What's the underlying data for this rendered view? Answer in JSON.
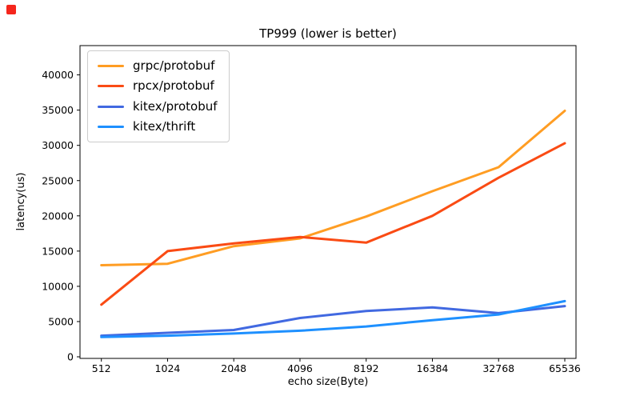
{
  "overlay": {
    "record_marker_color": "#F5261C"
  },
  "chart_data": {
    "type": "line",
    "title": "TP999 (lower is better)",
    "xlabel": "echo size(Byte)",
    "ylabel": "latency(us)",
    "categories": [
      "512",
      "1024",
      "2048",
      "4096",
      "8192",
      "16384",
      "32768",
      "65536"
    ],
    "yticks": [
      0,
      5000,
      10000,
      15000,
      20000,
      25000,
      30000,
      35000,
      40000
    ],
    "ylim": [
      0,
      44200
    ],
    "grid": false,
    "legend_position": "upper left",
    "background": "#ffffff",
    "spine_color": "#000000",
    "series": [
      {
        "name": "grpc/protobuf",
        "color": "#FF9D23",
        "values": [
          13000,
          13200,
          15700,
          16800,
          19900,
          23500,
          26900,
          34900
        ]
      },
      {
        "name": "rpcx/protobuf",
        "color": "#FA4B14",
        "values": [
          7400,
          15000,
          16100,
          17000,
          16200,
          20000,
          25400,
          30300
        ]
      },
      {
        "name": "kitex/protobuf",
        "color": "#4169E1",
        "values": [
          3000,
          3400,
          3800,
          5500,
          6500,
          7000,
          6200,
          7200
        ]
      },
      {
        "name": "kitex/thrift",
        "color": "#1E90FF",
        "values": [
          2800,
          3000,
          3300,
          3700,
          4300,
          5200,
          6000,
          7900
        ]
      }
    ]
  }
}
